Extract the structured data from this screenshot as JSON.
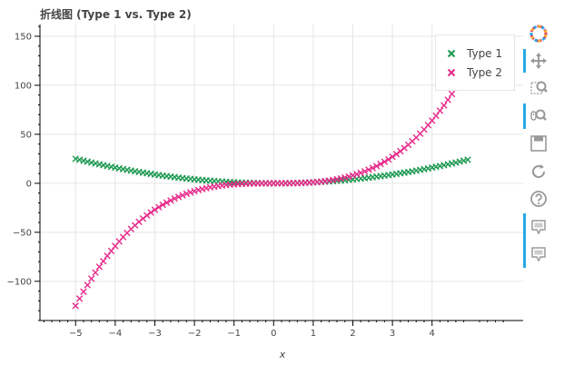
{
  "title": "折线图 (Type 1 vs. Type 2)",
  "chart_data": {
    "type": "scatter",
    "marker": "x",
    "xlabel": "x",
    "ylabel": "",
    "xlim": [
      -5.9,
      6.3
    ],
    "ylim": [
      -140,
      162
    ],
    "xticks": [
      -5,
      -4,
      -3,
      -2,
      -1,
      0,
      1,
      2,
      3,
      4
    ],
    "yticks": [
      -100,
      -50,
      0,
      50,
      100,
      150
    ],
    "grid": true,
    "legend_position": "top-right",
    "series": [
      {
        "name": "Type 1",
        "color": "#1a9850",
        "formula": "y = x^2",
        "x_start": -5.0,
        "x_end": 4.9,
        "x_step": 0.1
      },
      {
        "name": "Type 2",
        "color": "#e7298a",
        "formula": "y = x^3",
        "x_start": -5.0,
        "x_end": 4.9,
        "x_step": 0.1
      }
    ]
  },
  "toolbar": {
    "tools": [
      {
        "name": "bokeh-logo-icon",
        "active": false
      },
      {
        "name": "pan-icon",
        "active": true
      },
      {
        "name": "box-zoom-icon",
        "active": false
      },
      {
        "name": "wheel-zoom-icon",
        "active": true
      },
      {
        "name": "save-icon",
        "active": false
      },
      {
        "name": "reset-icon",
        "active": false
      },
      {
        "name": "help-icon",
        "active": false
      },
      {
        "name": "hover-icon",
        "active": true
      },
      {
        "name": "hover-icon-2",
        "active": true
      }
    ]
  }
}
